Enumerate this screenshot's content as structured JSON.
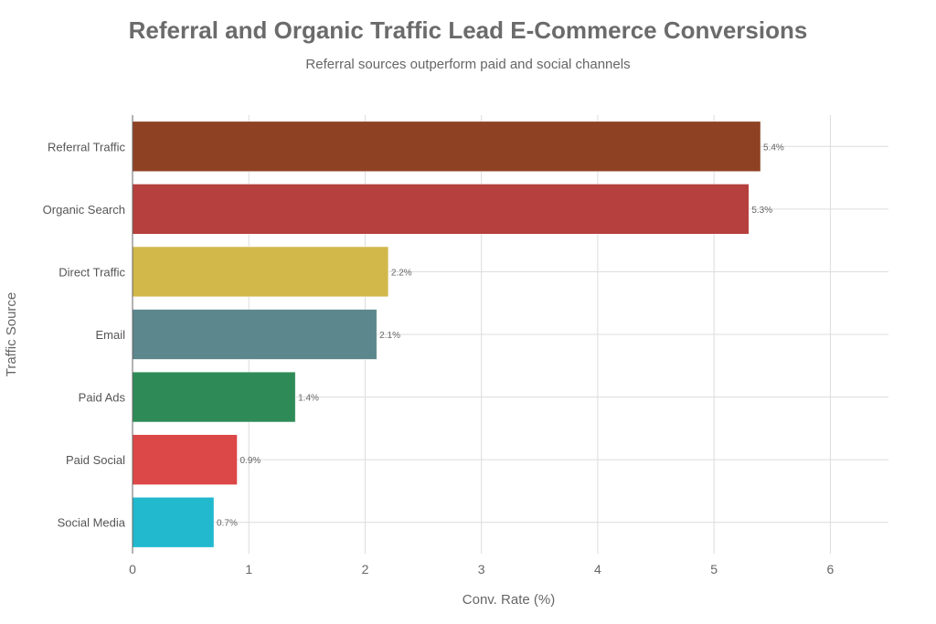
{
  "chart_data": {
    "type": "bar",
    "orientation": "horizontal",
    "title": "Referral and Organic Traffic Lead E-Commerce Conversions",
    "subtitle": "Referral sources outperform paid and social channels",
    "xlabel": "Conv. Rate (%)",
    "ylabel": "Traffic Source",
    "categories": [
      "Referral Traffic",
      "Organic Search",
      "Direct Traffic",
      "Email",
      "Paid Ads",
      "Paid Social",
      "Social Media"
    ],
    "values": [
      5.4,
      5.3,
      2.2,
      2.1,
      1.4,
      0.9,
      0.7
    ],
    "data_labels": [
      "5.4%",
      "5.3%",
      "2.2%",
      "2.1%",
      "1.4%",
      "0.9%",
      "0.7%"
    ],
    "colors": [
      "#8f4124",
      "#b5403d",
      "#d2b84b",
      "#5b878d",
      "#2e8b57",
      "#dc4747",
      "#22b9cf"
    ],
    "xlim": [
      0,
      6.5
    ],
    "xticks": [
      0,
      1,
      2,
      3,
      4,
      5,
      6
    ],
    "grid": true,
    "legend": "none"
  }
}
